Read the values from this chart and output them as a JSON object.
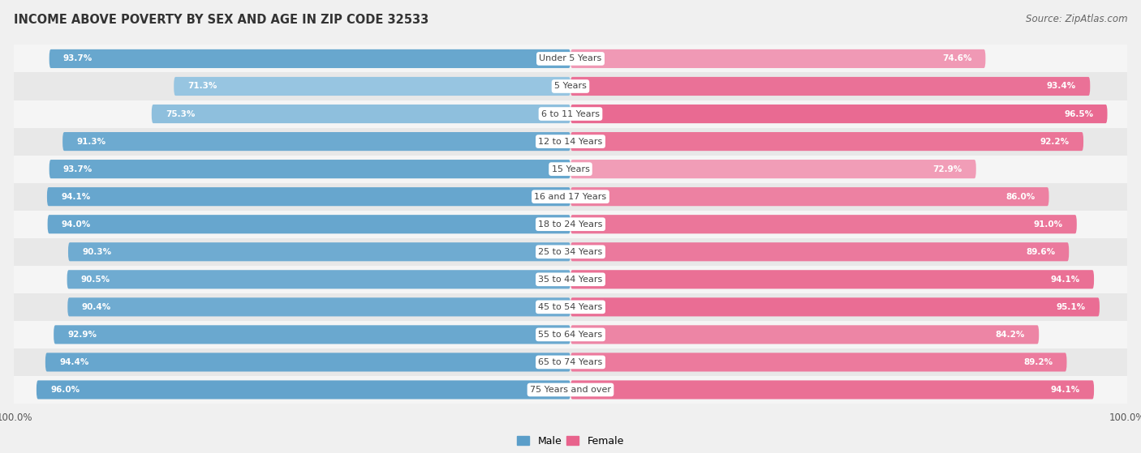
{
  "title": "INCOME ABOVE POVERTY BY SEX AND AGE IN ZIP CODE 32533",
  "source": "Source: ZipAtlas.com",
  "categories": [
    "Under 5 Years",
    "5 Years",
    "6 to 11 Years",
    "12 to 14 Years",
    "15 Years",
    "16 and 17 Years",
    "18 to 24 Years",
    "25 to 34 Years",
    "35 to 44 Years",
    "45 to 54 Years",
    "55 to 64 Years",
    "65 to 74 Years",
    "75 Years and over"
  ],
  "male_values": [
    93.7,
    71.3,
    75.3,
    91.3,
    93.7,
    94.1,
    94.0,
    90.3,
    90.5,
    90.4,
    92.9,
    94.4,
    96.0
  ],
  "female_values": [
    74.6,
    93.4,
    96.5,
    92.2,
    72.9,
    86.0,
    91.0,
    89.6,
    94.1,
    95.1,
    84.2,
    89.2,
    94.1
  ],
  "male_color_high": "#5b9ec9",
  "male_color_low": "#aed4ea",
  "female_color_high": "#e8638c",
  "female_color_low": "#f5b8cc",
  "male_label": "Male",
  "female_label": "Female",
  "bg_color": "#f0f0f0",
  "row_color_odd": "#e8e8e8",
  "row_color_even": "#f5f5f5",
  "max_value": 100.0,
  "title_fontsize": 10.5,
  "source_fontsize": 8.5,
  "label_fontsize": 8,
  "value_fontsize": 7.5,
  "tick_fontsize": 8.5
}
